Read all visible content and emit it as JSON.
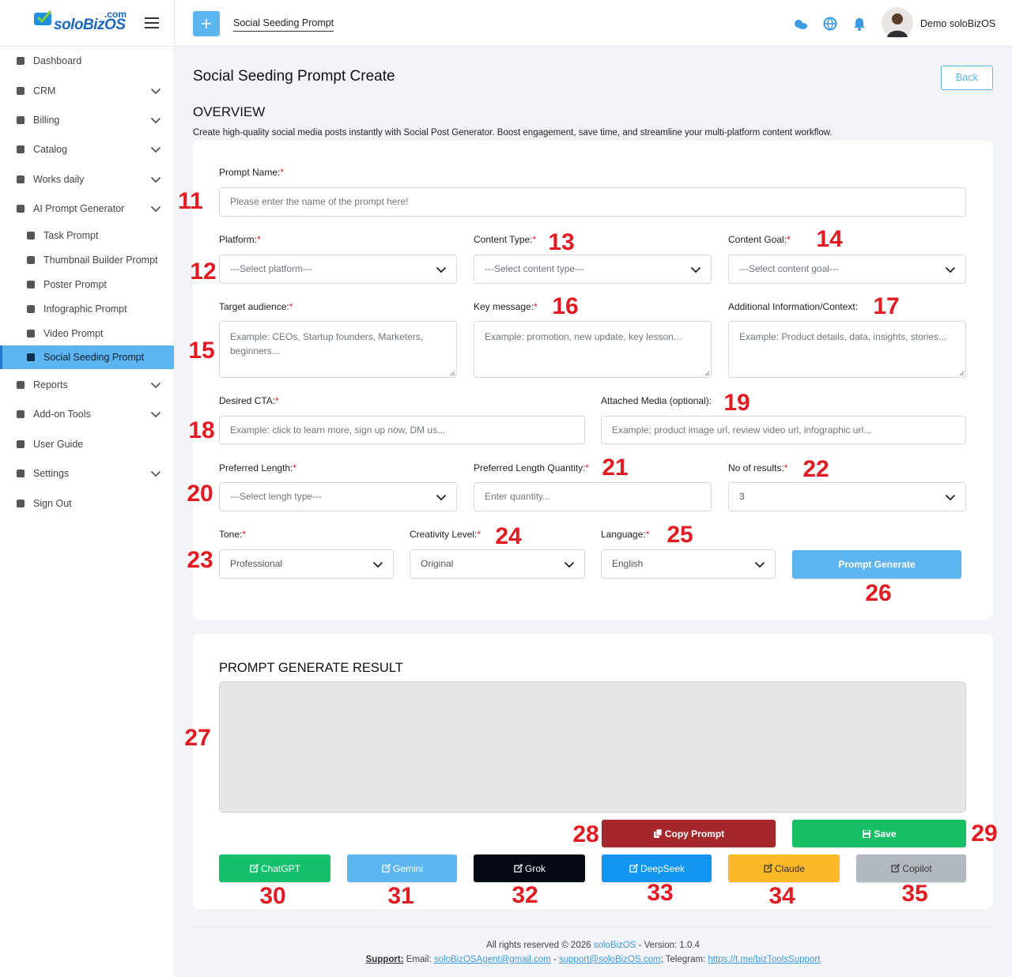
{
  "brand": {
    "name": "soloBizOS",
    "suffix": ".com"
  },
  "topbar": {
    "tab": "Social Seeding Prompt",
    "user": "Demo soloBizOS"
  },
  "sidebar": {
    "items": [
      {
        "label": "Dashboard"
      },
      {
        "label": "CRM",
        "expandable": true
      },
      {
        "label": "Billing",
        "expandable": true
      },
      {
        "label": "Catalog",
        "expandable": true
      },
      {
        "label": "Works daily",
        "expandable": true
      },
      {
        "label": "AI Prompt Generator",
        "expandable": true
      },
      {
        "label": "Task Prompt",
        "sub": true
      },
      {
        "label": "Thumbnail Builder Prompt",
        "sub": true
      },
      {
        "label": "Poster Prompt",
        "sub": true
      },
      {
        "label": "Infographic Prompt",
        "sub": true
      },
      {
        "label": "Video Prompt",
        "sub": true
      },
      {
        "label": "Social Seeding Prompt",
        "sub": true,
        "active": true
      },
      {
        "label": "Reports",
        "expandable": true
      },
      {
        "label": "Add-on Tools",
        "expandable": true
      },
      {
        "label": "User Guide"
      },
      {
        "label": "Settings",
        "expandable": true
      },
      {
        "label": "Sign Out"
      }
    ]
  },
  "page": {
    "title": "Social Seeding Prompt Create",
    "back": "Back",
    "overview": "OVERVIEW",
    "description": "Create high-quality social media posts instantly with Social Post Generator. Boost engagement, save time, and streamline your multi-platform content workflow."
  },
  "form": {
    "fields": [
      {
        "label": "Prompt Name:",
        "required": "*",
        "kind": "input",
        "placeholder": "Please enter the name of the prompt here!",
        "marker": "11"
      },
      {
        "label": "Platform:",
        "required": "*",
        "kind": "select",
        "placeholder": "---Select platform---",
        "marker": "12"
      },
      {
        "label": "Content Type:",
        "required": "*",
        "kind": "select",
        "placeholder": "---Select content type---",
        "marker": "13"
      },
      {
        "label": "Content Goal:",
        "required": "*",
        "kind": "select",
        "placeholder": "---Select content goal---",
        "marker": "14"
      },
      {
        "label": "Target audience:",
        "required": "*",
        "kind": "textarea",
        "placeholder": "Example: CEOs, Startup founders, Marketers, beginners...",
        "marker": "15"
      },
      {
        "label": "Key message:",
        "required": "*",
        "kind": "textarea",
        "placeholder": "Example: promotion, new update, key lesson...",
        "marker": "16"
      },
      {
        "label": "Additional Information/Context:",
        "kind": "textarea",
        "placeholder": "Example: Product details, data, insights, stories...",
        "marker": "17"
      },
      {
        "label": "Desired CTA:",
        "required": "*",
        "kind": "input",
        "placeholder": "Example: click to learn more, sign up now, DM us...",
        "marker": "18"
      },
      {
        "label": "Attached Media (optional):",
        "kind": "input",
        "placeholder": "Example: product image url, review video url, infographic url...",
        "marker": "19"
      },
      {
        "label": "Preferred Length:",
        "required": "*",
        "kind": "select",
        "placeholder": "---Select lengh type---",
        "marker": "20"
      },
      {
        "label": "Preferred Length Quantity:",
        "required": "*",
        "kind": "input",
        "placeholder": "Enter quantity...",
        "marker": "21"
      },
      {
        "label": "No of results:",
        "required": "*",
        "kind": "select",
        "value": "3",
        "marker": "22"
      },
      {
        "label": "Tone:",
        "required": "*",
        "kind": "select",
        "value": "Professional",
        "marker": "23"
      },
      {
        "label": "Creativity Level:",
        "required": "*",
        "kind": "select",
        "value": "Original",
        "marker": "24"
      },
      {
        "label": "Language:",
        "required": "*",
        "kind": "select",
        "value": "English",
        "marker": "25"
      }
    ],
    "generate": {
      "label": "Prompt Generate",
      "color": "#5db5f0",
      "marker": "26"
    }
  },
  "result": {
    "title": "PROMPT GENERATE RESULT",
    "marker": "27",
    "actions": [
      {
        "label": "Copy Prompt",
        "color": "#a4282b",
        "text_color": "#ffffff",
        "marker": "28"
      },
      {
        "label": "Save",
        "color": "#16bf63",
        "text_color": "#ffffff",
        "marker": "29"
      }
    ],
    "ai_links": [
      {
        "label": "ChatGPT",
        "color": "#14c06c",
        "text_color": "#ffffff",
        "marker": "30"
      },
      {
        "label": "Gemini",
        "color": "#5db5f0",
        "text_color": "#ffffff",
        "marker": "31"
      },
      {
        "label": "Grok",
        "color": "#050a16",
        "text_color": "#ffffff",
        "marker": "32"
      },
      {
        "label": "DeepSeek",
        "color": "#1395f2",
        "text_color": "#ffffff",
        "marker": "33"
      },
      {
        "label": "Claude",
        "color": "#fbb829",
        "text_color": "#333333",
        "marker": "34"
      },
      {
        "label": "Copilot",
        "color": "#b2b8bf",
        "text_color": "#3a3a3a",
        "marker": "35"
      }
    ]
  },
  "footer": {
    "line1": [
      {
        "text": "All rights reserved © 2026 "
      },
      {
        "text": "soloBizOS",
        "link": true
      },
      {
        "text": " - Version: 1.0.4"
      }
    ],
    "line2": [
      {
        "text": "Support:",
        "strong": true
      },
      {
        "text": " Email: "
      },
      {
        "text": "soloBizOSAgent@gmail.com",
        "link": true
      },
      {
        "text": " - "
      },
      {
        "text": "support@soloBizOS.com",
        "link": true
      },
      {
        "text": "; Telegram: "
      },
      {
        "text": "https://t.me/bizToolsSupport",
        "link": true
      }
    ]
  }
}
